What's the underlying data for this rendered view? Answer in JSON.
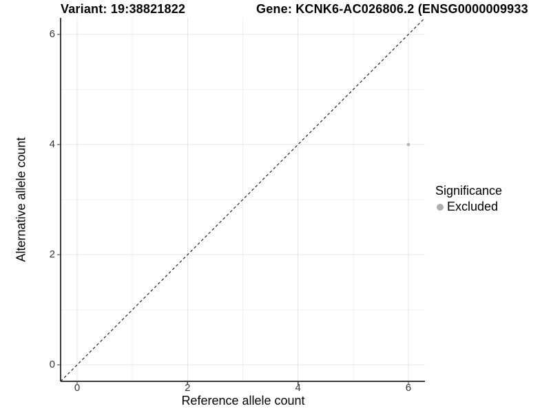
{
  "chart_data": {
    "type": "scatter",
    "title_left": "Variant: 19:38821822",
    "title_right": "Gene: KCNK6-AC026806.2 (ENSG0000009933",
    "xlabel": "Reference allele count",
    "ylabel": "Alternative allele count",
    "xlim": [
      -0.3,
      6.3
    ],
    "ylim": [
      -0.3,
      6.3
    ],
    "x_major_ticks": [
      0,
      2,
      4,
      6
    ],
    "y_major_ticks": [
      0,
      2,
      4,
      6
    ],
    "x_tick_labels": [
      "0",
      "2",
      "4",
      "6"
    ],
    "y_tick_labels": [
      "0",
      "2",
      "4",
      "6"
    ],
    "x_minor_ticks": [
      1,
      3,
      5
    ],
    "y_minor_ticks": [
      1,
      3,
      5
    ],
    "grid": "on",
    "reference_line": {
      "type": "identity y=x",
      "style": "dashed",
      "color": "#111111"
    },
    "series": [
      {
        "name": "Excluded",
        "color": "#b5b5b5",
        "points": [
          {
            "x": 6,
            "y": 4
          }
        ]
      }
    ],
    "legend": {
      "title": "Significance",
      "position": "right",
      "items": [
        {
          "label": "Excluded",
          "color": "#adadad"
        }
      ]
    }
  },
  "colors": {
    "background": "#ffffff",
    "grid_major": "#e4e4e4",
    "grid_minor": "#f0f0f0",
    "axis_line": "#3a3a3a",
    "tick_mark": "#3a3a3a",
    "tick_text": "#333333",
    "text": "#000000",
    "point": "#b5b5b5",
    "dashed_line": "#111111"
  }
}
